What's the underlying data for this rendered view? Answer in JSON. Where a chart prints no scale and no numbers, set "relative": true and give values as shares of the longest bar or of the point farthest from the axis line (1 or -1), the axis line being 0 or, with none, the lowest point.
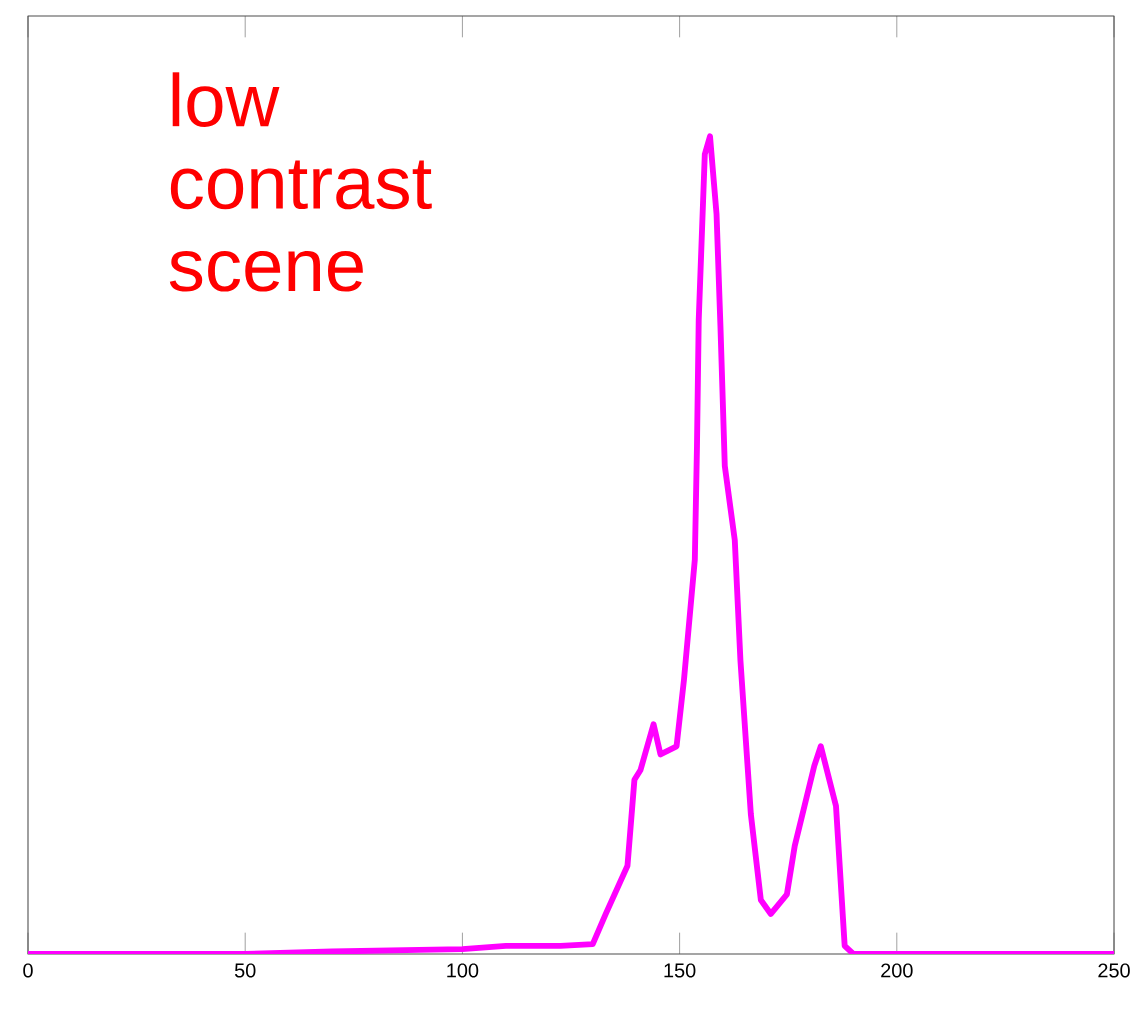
{
  "chart_data": {
    "type": "line",
    "relative": true,
    "tick_labels": "x",
    "marker": "none",
    "line_style": "solid",
    "annotations": [
      "low contrast scene"
    ],
    "xlim": [
      0,
      250
    ],
    "xticks": [
      0,
      50,
      100,
      150,
      200,
      250
    ],
    "series": [
      {
        "color": "#ff00ff",
        "x": [
          0,
          50,
          70,
          90,
          100,
          110,
          122.6,
          130,
          133,
          138,
          139.6,
          141,
          144,
          145.6,
          149.3,
          151,
          153.5,
          154,
          154.4,
          155.8,
          157,
          158.5,
          159.4,
          160.4,
          162.7,
          164,
          166.4,
          168.7,
          171,
          174.7,
          176.5,
          181,
          182.5,
          186,
          188,
          190,
          250
        ],
        "values": [
          0,
          0,
          0.003,
          0.005,
          0.006,
          0.01,
          0.01,
          0.012,
          0.049,
          0.108,
          0.213,
          0.225,
          0.281,
          0.244,
          0.254,
          0.335,
          0.482,
          0.621,
          0.775,
          0.978,
          1,
          0.905,
          0.768,
          0.597,
          0.506,
          0.359,
          0.171,
          0.066,
          0.049,
          0.073,
          0.132,
          0.23,
          0.254,
          0.181,
          0.01,
          0,
          0
        ]
      }
    ]
  }
}
